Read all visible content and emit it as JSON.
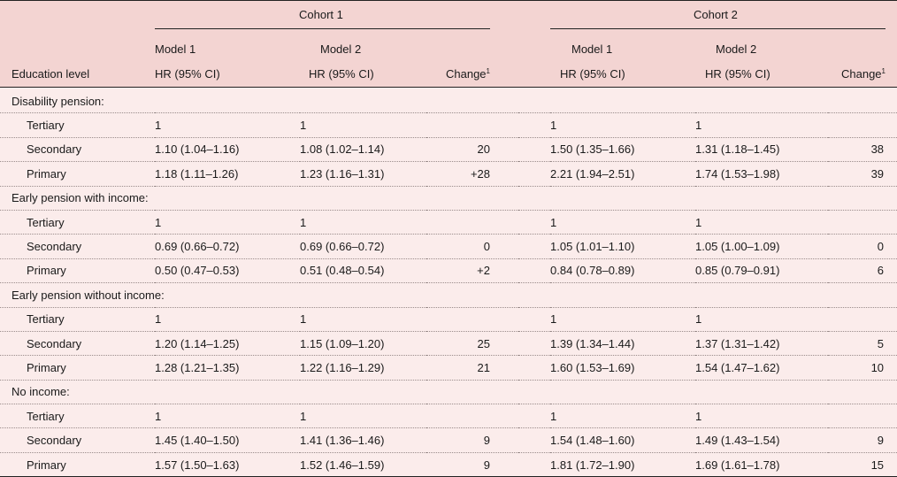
{
  "header": {
    "cohort1": "Cohort 1",
    "cohort2": "Cohort 2",
    "model1": "Model 1",
    "model2": "Model 2",
    "hr": "HR (95% CI)",
    "change": "Change",
    "change_sup": "1",
    "education_level": "Education level"
  },
  "sections": [
    {
      "title": "Disability pension:",
      "rows": [
        {
          "level": "Tertiary",
          "c1m1": "1",
          "c1m2": "1",
          "c1ch": "",
          "c2m1": "1",
          "c2m2": "1",
          "c2ch": ""
        },
        {
          "level": "Secondary",
          "c1m1": "1.10 (1.04–1.16)",
          "c1m2": "1.08 (1.02–1.14)",
          "c1ch": "20",
          "c2m1": "1.50 (1.35–1.66)",
          "c2m2": "1.31 (1.18–1.45)",
          "c2ch": "38"
        },
        {
          "level": "Primary",
          "c1m1": "1.18 (1.11–1.26)",
          "c1m2": "1.23 (1.16–1.31)",
          "c1ch": "+28",
          "c2m1": "2.21 (1.94–2.51)",
          "c2m2": "1.74 (1.53–1.98)",
          "c2ch": "39"
        }
      ]
    },
    {
      "title": "Early pension with income:",
      "rows": [
        {
          "level": "Tertiary",
          "c1m1": "1",
          "c1m2": "1",
          "c1ch": "",
          "c2m1": "1",
          "c2m2": "1",
          "c2ch": ""
        },
        {
          "level": "Secondary",
          "c1m1": "0.69 (0.66–0.72)",
          "c1m2": "0.69 (0.66–0.72)",
          "c1ch": "0",
          "c2m1": "1.05 (1.01–1.10)",
          "c2m2": "1.05 (1.00–1.09)",
          "c2ch": "0"
        },
        {
          "level": "Primary",
          "c1m1": "0.50 (0.47–0.53)",
          "c1m2": "0.51 (0.48–0.54)",
          "c1ch": "+2",
          "c2m1": "0.84 (0.78–0.89)",
          "c2m2": "0.85 (0.79–0.91)",
          "c2ch": "6"
        }
      ]
    },
    {
      "title": "Early pension without income:",
      "rows": [
        {
          "level": "Tertiary",
          "c1m1": "1",
          "c1m2": "1",
          "c1ch": "",
          "c2m1": "1",
          "c2m2": "1",
          "c2ch": ""
        },
        {
          "level": "Secondary",
          "c1m1": "1.20 (1.14–1.25)",
          "c1m2": "1.15 (1.09–1.20)",
          "c1ch": "25",
          "c2m1": "1.39 (1.34–1.44)",
          "c2m2": "1.37 (1.31–1.42)",
          "c2ch": "5"
        },
        {
          "level": "Primary",
          "c1m1": "1.28 (1.21–1.35)",
          "c1m2": "1.22 (1.16–1.29)",
          "c1ch": "21",
          "c2m1": "1.60 (1.53–1.69)",
          "c2m2": "1.54 (1.47–1.62)",
          "c2ch": "10"
        }
      ]
    },
    {
      "title": "No income:",
      "rows": [
        {
          "level": "Tertiary",
          "c1m1": "1",
          "c1m2": "1",
          "c1ch": "",
          "c2m1": "1",
          "c2m2": "1",
          "c2ch": ""
        },
        {
          "level": "Secondary",
          "c1m1": "1.45 (1.40–1.50)",
          "c1m2": "1.41 (1.36–1.46)",
          "c1ch": "9",
          "c2m1": "1.54 (1.48–1.60)",
          "c2m2": "1.49 (1.43–1.54)",
          "c2ch": "9"
        },
        {
          "level": "Primary",
          "c1m1": "1.57 (1.50–1.63)",
          "c1m2": "1.52 (1.46–1.59)",
          "c1ch": "9",
          "c2m1": "1.81 (1.72–1.90)",
          "c2m2": "1.69 (1.61–1.78)",
          "c2ch": "15"
        }
      ]
    }
  ]
}
